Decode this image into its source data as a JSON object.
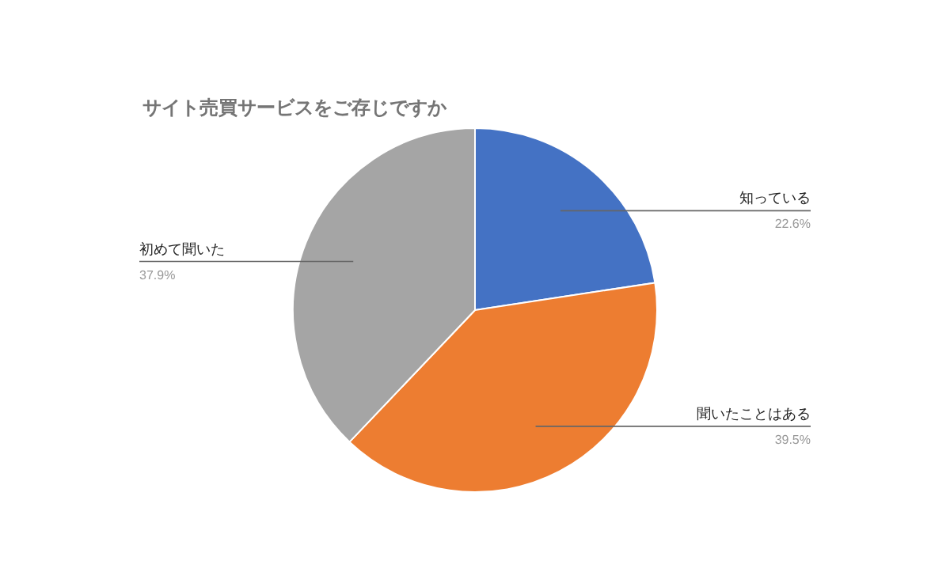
{
  "chart_data": {
    "type": "pie",
    "title": "サイト売買サービスをご存じですか",
    "categories": [
      "知っている",
      "聞いたことはある",
      "初めて聞いた"
    ],
    "values": [
      22.6,
      39.5,
      37.9
    ],
    "colors": [
      "#4472c4",
      "#ed7d31",
      "#a5a5a5"
    ],
    "value_labels": [
      "22.6%",
      "39.5%",
      "37.9%"
    ]
  }
}
